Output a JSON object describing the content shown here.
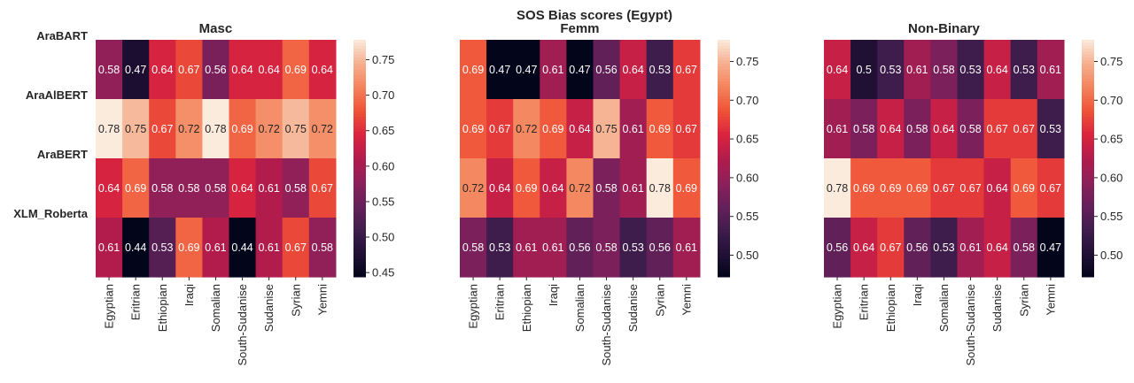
{
  "chart_data": {
    "type": "heatmap",
    "suptitle": "SOS Bias scores (Egypt)",
    "rows": [
      "AraBART",
      "AraAlBERT",
      "AraBERT",
      "XLM_Roberta"
    ],
    "columns": [
      "Egyptian",
      "Eritrian",
      "Ethiopian",
      "Iraqi",
      "Somalian",
      "South-Sudanise",
      "Sudanise",
      "Syrian",
      "Yemni"
    ],
    "colormap": "rocket",
    "panels": [
      {
        "title": "Masc",
        "values": [
          [
            0.58,
            0.47,
            0.64,
            0.67,
            0.56,
            0.64,
            0.64,
            0.69,
            0.64
          ],
          [
            0.78,
            0.75,
            0.67,
            0.72,
            0.78,
            0.69,
            0.72,
            0.75,
            0.72
          ],
          [
            0.64,
            0.69,
            0.58,
            0.58,
            0.58,
            0.64,
            0.61,
            0.58,
            0.67
          ],
          [
            0.61,
            0.44,
            0.53,
            0.69,
            0.61,
            0.44,
            0.61,
            0.67,
            0.58
          ]
        ],
        "vmin": 0.444,
        "vmax": 0.778,
        "colorbar_ticks": [
          "0.45",
          "0.50",
          "0.55",
          "0.60",
          "0.65",
          "0.70",
          "0.75"
        ]
      },
      {
        "title": "Femm",
        "values": [
          [
            0.69,
            0.47,
            0.47,
            0.61,
            0.47,
            0.56,
            0.64,
            0.53,
            0.67
          ],
          [
            0.69,
            0.67,
            0.72,
            0.69,
            0.64,
            0.75,
            0.61,
            0.69,
            0.67
          ],
          [
            0.72,
            0.64,
            0.69,
            0.64,
            0.72,
            0.58,
            0.61,
            0.78,
            0.69
          ],
          [
            0.58,
            0.53,
            0.61,
            0.61,
            0.56,
            0.58,
            0.53,
            0.56,
            0.61
          ]
        ],
        "vmin": 0.472,
        "vmax": 0.778,
        "colorbar_ticks": [
          "0.50",
          "0.55",
          "0.60",
          "0.65",
          "0.70",
          "0.75"
        ]
      },
      {
        "title": "Non-Binary",
        "values": [
          [
            0.64,
            0.5,
            0.53,
            0.61,
            0.58,
            0.53,
            0.64,
            0.53,
            0.61
          ],
          [
            0.61,
            0.58,
            0.64,
            0.58,
            0.64,
            0.58,
            0.67,
            0.67,
            0.53
          ],
          [
            0.78,
            0.69,
            0.69,
            0.69,
            0.67,
            0.67,
            0.64,
            0.69,
            0.67
          ],
          [
            0.56,
            0.64,
            0.67,
            0.56,
            0.53,
            0.61,
            0.64,
            0.58,
            0.47
          ]
        ],
        "vmin": 0.472,
        "vmax": 0.778,
        "colorbar_ticks": [
          "0.50",
          "0.55",
          "0.60",
          "0.65",
          "0.70",
          "0.75"
        ]
      }
    ]
  }
}
